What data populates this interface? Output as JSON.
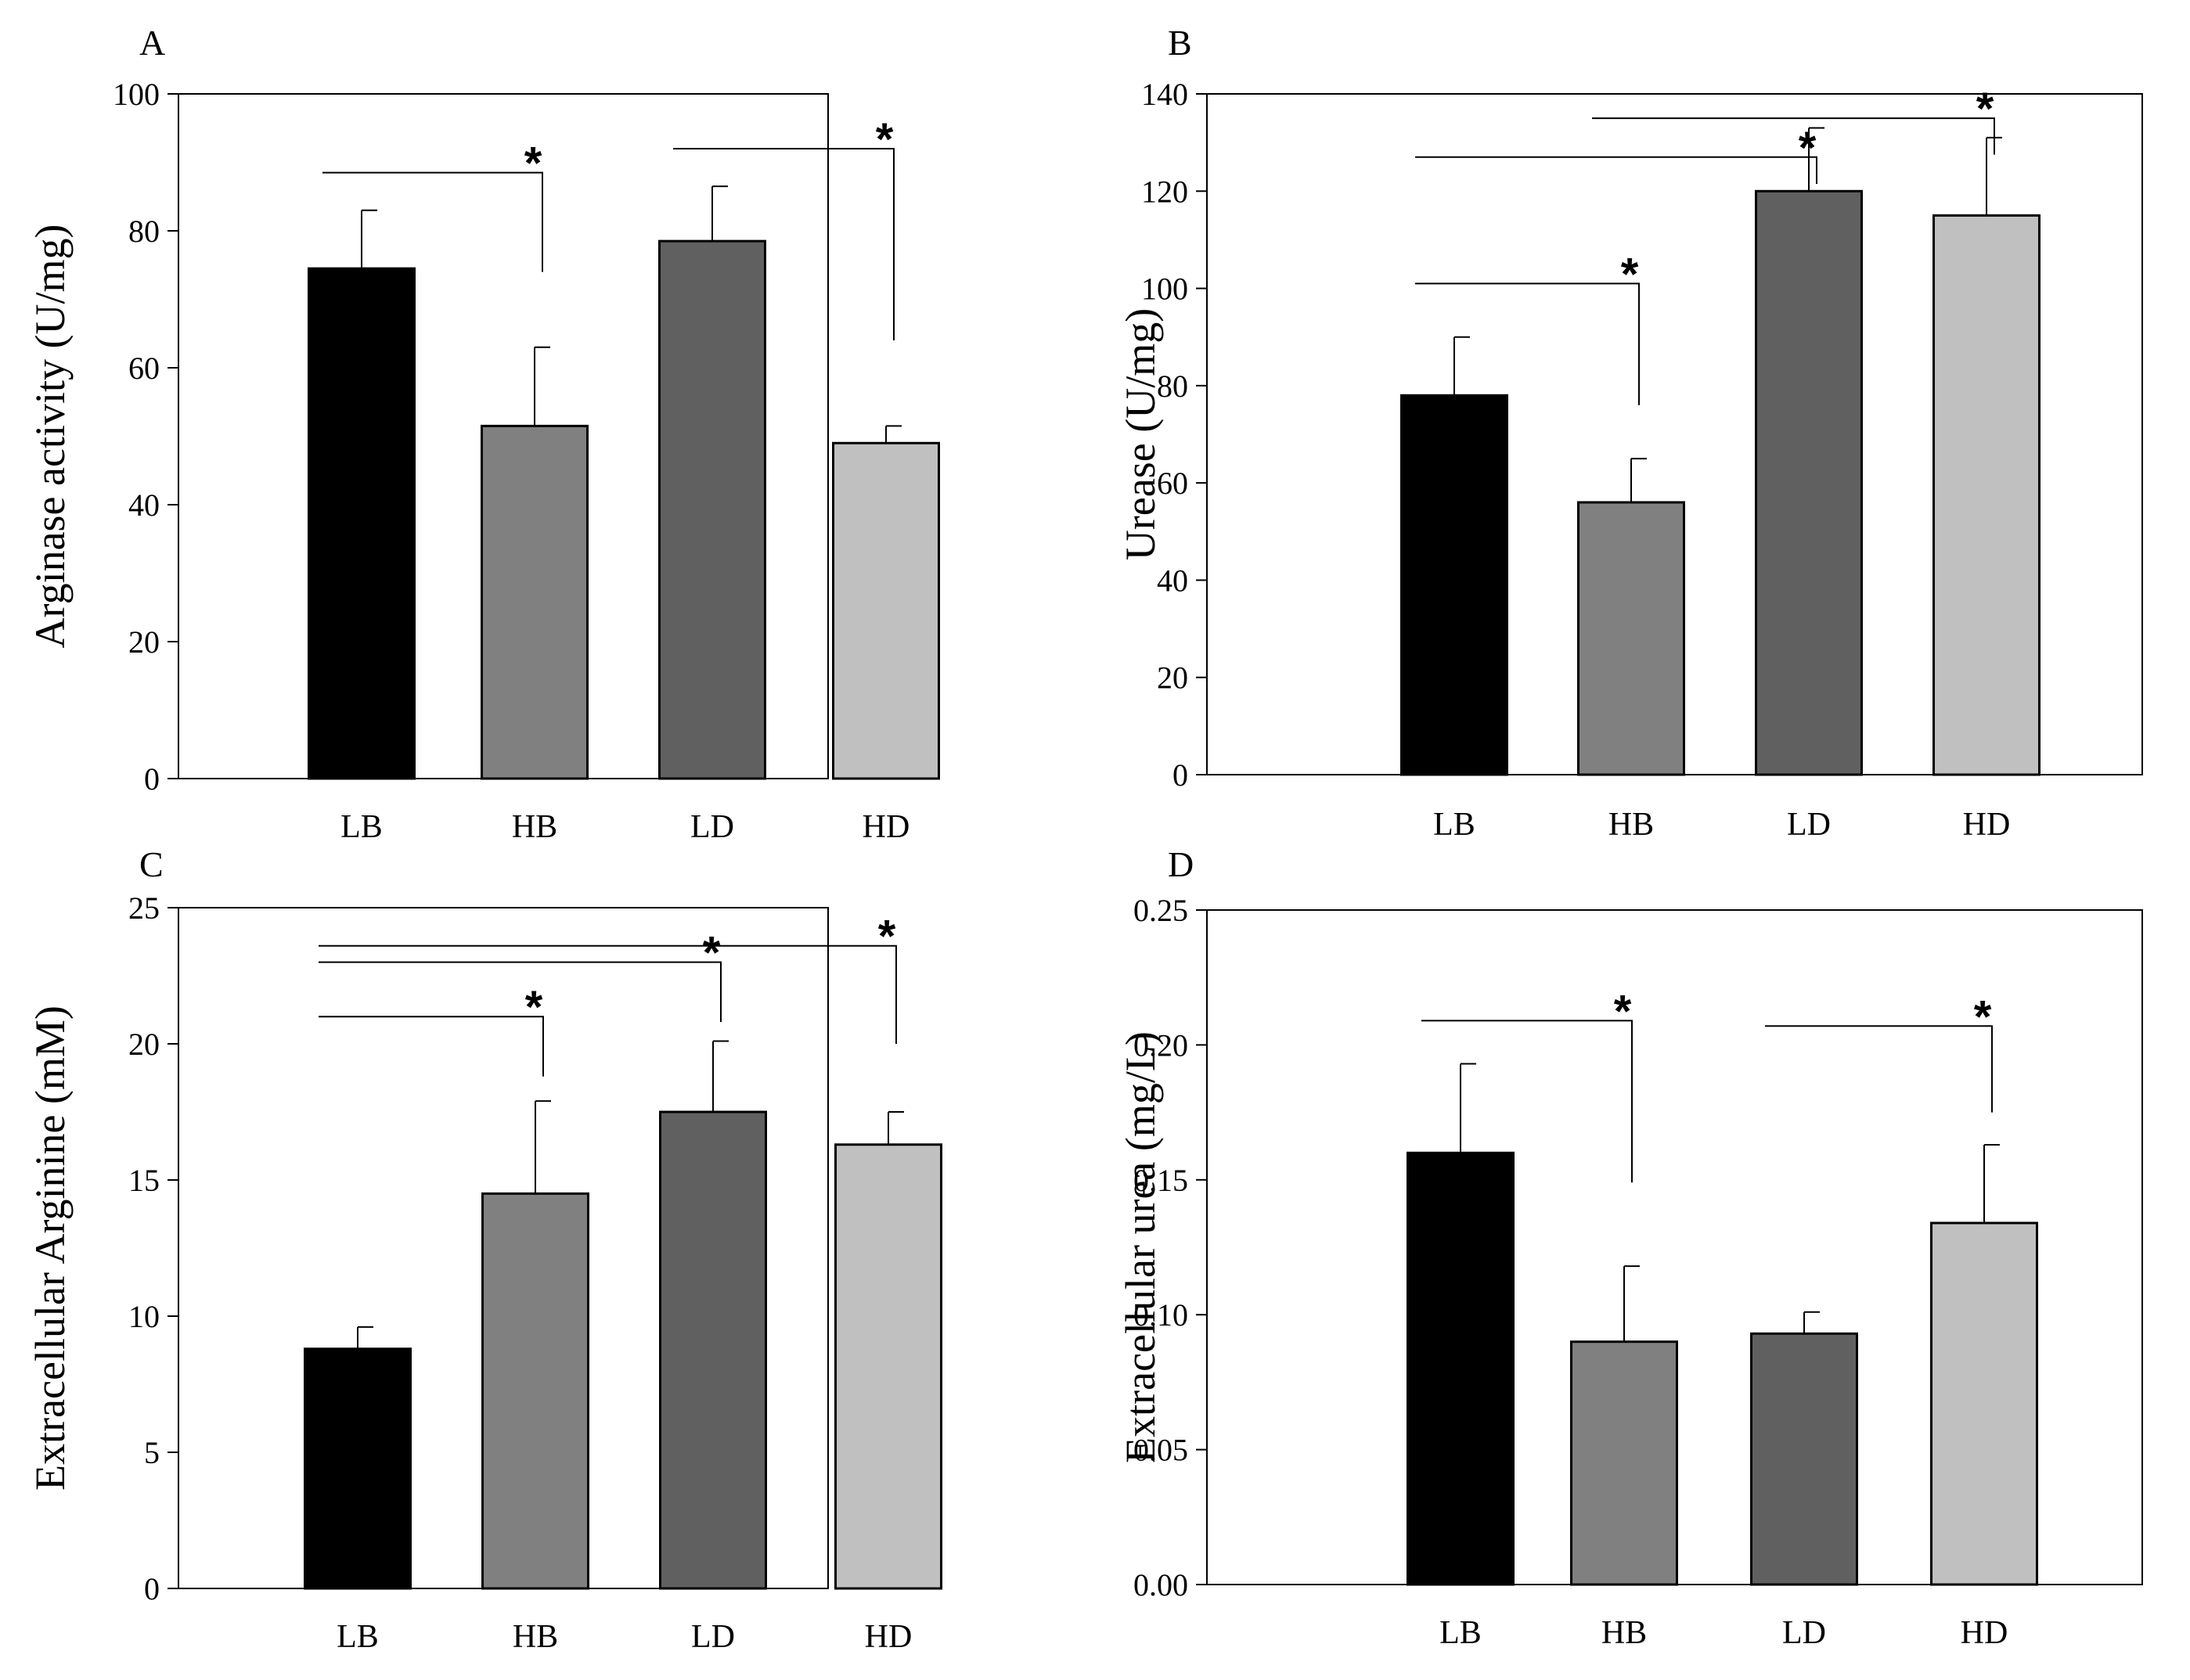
{
  "chart_data": [
    {
      "panel": "A",
      "type": "bar",
      "categories": [
        "LB",
        "HB",
        "LD",
        "HD"
      ],
      "values": [
        74.5,
        51.5,
        78.5,
        49
      ],
      "errors": [
        8.5,
        11.5,
        8,
        2.5
      ],
      "colors": [
        "#000000",
        "#808080",
        "#606060",
        "#c0c0c0"
      ],
      "ylabel": "Arginase activity (U/mg)",
      "xlabel": "",
      "ylim": [
        0,
        100
      ],
      "yticks": [
        0,
        20,
        40,
        60,
        80,
        100
      ],
      "ytick_labels": [
        "0",
        "20",
        "40",
        "60",
        "80",
        "100"
      ],
      "significance": [
        {
          "from": "LB",
          "to": "HB",
          "line_value": 88.5,
          "drop_value": 74,
          "label": "*"
        },
        {
          "from": "LD",
          "to": "HD",
          "line_value": 92,
          "drop_value": 64,
          "label": "*"
        }
      ]
    },
    {
      "panel": "B",
      "type": "bar",
      "categories": [
        "LB",
        "HB",
        "LD",
        "HD"
      ],
      "values": [
        78,
        56,
        120,
        115
      ],
      "errors": [
        12,
        9,
        13,
        16
      ],
      "colors": [
        "#000000",
        "#808080",
        "#606060",
        "#c0c0c0"
      ],
      "ylabel": "Urease (U/mg)",
      "xlabel": "",
      "ylim": [
        0,
        140
      ],
      "yticks": [
        0,
        20,
        40,
        60,
        80,
        100,
        120,
        140
      ],
      "ytick_labels": [
        "0",
        "20",
        "40",
        "60",
        "80",
        "100",
        "120",
        "140"
      ],
      "significance": [
        {
          "from": "LB",
          "to": "HB",
          "line_value": 101,
          "drop_value": 76,
          "label": "*"
        },
        {
          "from": "LB",
          "to": "LD",
          "line_value": 127,
          "drop_value": 121.5,
          "label": "*"
        },
        {
          "from": "HB",
          "to": "HD",
          "line_value": 135,
          "drop_value": 127.5,
          "label": "*"
        }
      ]
    },
    {
      "panel": "C",
      "type": "bar",
      "categories": [
        "LB",
        "HB",
        "LD",
        "HD"
      ],
      "values": [
        8.8,
        14.5,
        17.5,
        16.3
      ],
      "errors": [
        0.8,
        3.4,
        2.6,
        1.2
      ],
      "colors": [
        "#000000",
        "#808080",
        "#606060",
        "#c0c0c0"
      ],
      "ylabel": "Extracellular Arginine (mM)",
      "xlabel": "",
      "ylim": [
        0,
        25
      ],
      "yticks": [
        0,
        5,
        10,
        15,
        20,
        25
      ],
      "ytick_labels": [
        "0",
        "5",
        "10",
        "15",
        "20",
        "25"
      ],
      "significance": [
        {
          "from": "LB",
          "to": "HB",
          "line_value": 21,
          "drop_value": 18.8,
          "label": "*"
        },
        {
          "from": "LB",
          "to": "LD",
          "line_value": 23,
          "drop_value": 20.8,
          "label": "*"
        },
        {
          "from": "LB",
          "to": "HD",
          "line_value": 23.6,
          "drop_value": 20,
          "label": "*"
        }
      ]
    },
    {
      "panel": "D",
      "type": "bar",
      "categories": [
        "LB",
        "HB",
        "LD",
        "HD"
      ],
      "values": [
        0.16,
        0.09,
        0.093,
        0.134
      ],
      "errors": [
        0.033,
        0.028,
        0.008,
        0.029
      ],
      "colors": [
        "#000000",
        "#808080",
        "#606060",
        "#c0c0c0"
      ],
      "ylabel": "Extracellular urea (mg/L)",
      "xlabel": "",
      "ylim": [
        0,
        0.25
      ],
      "yticks": [
        0,
        0.05,
        0.1,
        0.15,
        0.2,
        0.25
      ],
      "ytick_labels": [
        "0.00",
        "0.05",
        "0.10",
        "0.15",
        "0.20",
        "0.25"
      ],
      "significance": [
        {
          "from": "LB",
          "to": "HB",
          "line_value": 0.209,
          "drop_value": 0.149,
          "label": "*"
        },
        {
          "from": "LD",
          "to": "HD",
          "line_value": 0.207,
          "drop_value": 0.175,
          "label": "*"
        }
      ]
    }
  ]
}
